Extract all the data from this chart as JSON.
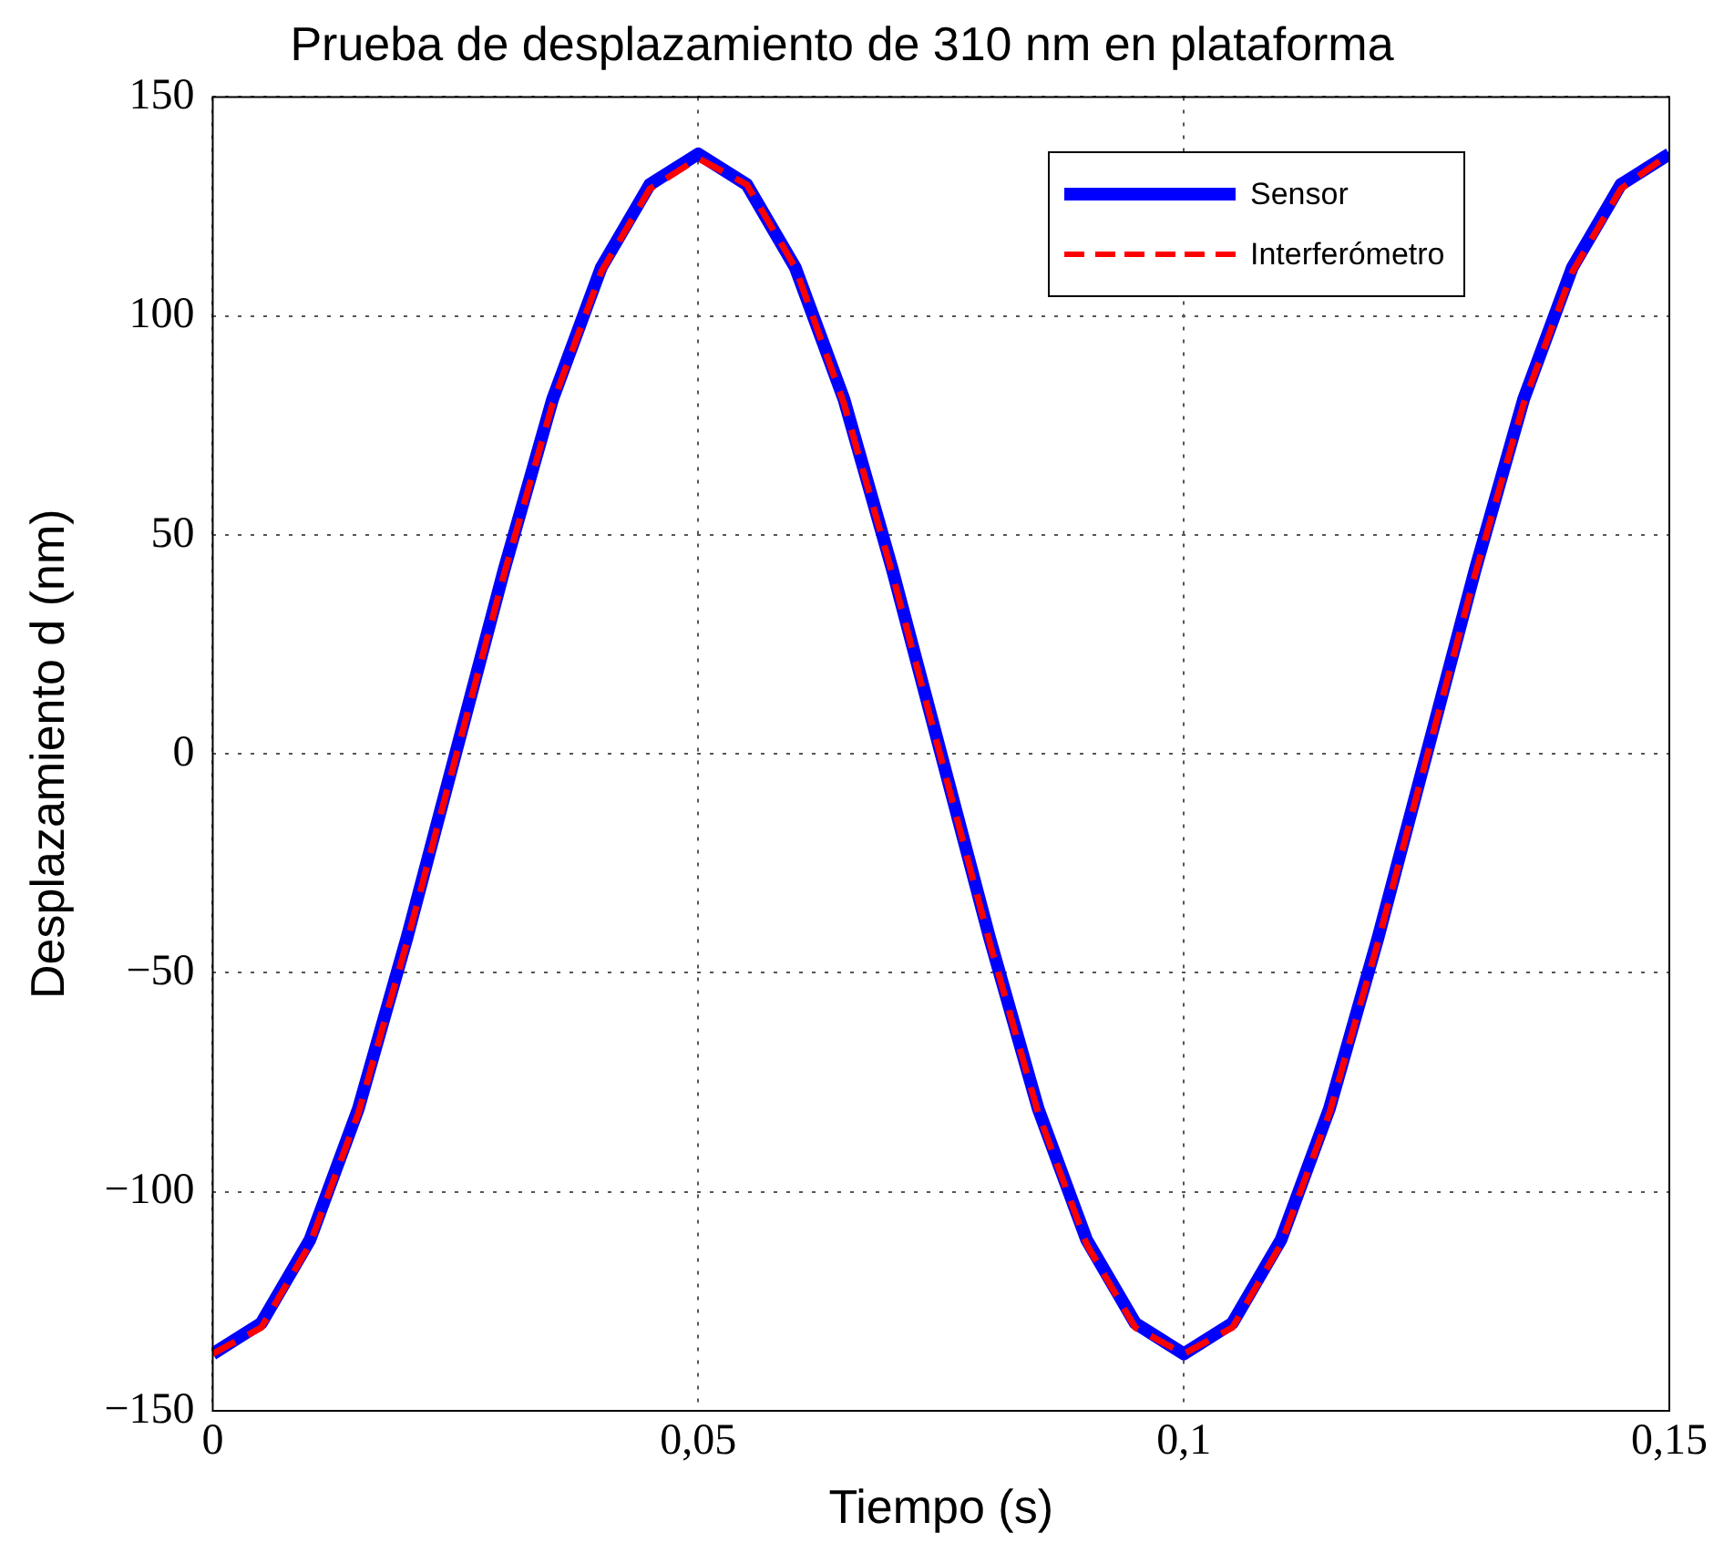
{
  "chart_data": {
    "type": "line",
    "title": "Prueba de desplazamiento de 310 nm en plataforma",
    "xlabel": "Tiempo (s)",
    "ylabel": "Desplazamiento d (nm)",
    "x": [
      0,
      0.005,
      0.01,
      0.015,
      0.02,
      0.025,
      0.03,
      0.035,
      0.04,
      0.045,
      0.05,
      0.055,
      0.06,
      0.065,
      0.07,
      0.075,
      0.08,
      0.085,
      0.09,
      0.095,
      0.1,
      0.105,
      0.11,
      0.115,
      0.12,
      0.125,
      0.13,
      0.135,
      0.14,
      0.145,
      0.15
    ],
    "series": [
      {
        "name": "Sensor",
        "color": "#0000ff",
        "line_style": "solid",
        "values": [
          -137,
          -130,
          -111,
          -81,
          -42,
          0,
          42,
          81,
          111,
          130,
          137,
          130,
          111,
          81,
          42,
          0,
          -42,
          -81,
          -111,
          -130,
          -137,
          -130,
          -111,
          -81,
          -42,
          0,
          42,
          81,
          111,
          130,
          137
        ]
      },
      {
        "name": "Interferómetro",
        "color": "#ff0000",
        "line_style": "dashed",
        "values": [
          -137,
          -131,
          -112,
          -82,
          -43,
          -1,
          41,
          80,
          110,
          129,
          136,
          130,
          111,
          80,
          41,
          -1,
          -43,
          -82,
          -112,
          -131,
          -137,
          -131,
          -112,
          -82,
          -43,
          -1,
          41,
          80,
          110,
          129,
          137
        ]
      }
    ],
    "xlim": [
      0,
      0.15
    ],
    "xticks": [
      0,
      {
        "value": 0.05,
        "label": "0,05"
      },
      {
        "value": 0.1,
        "label": "0,1"
      },
      {
        "value": 0.15,
        "label": "0,15"
      }
    ],
    "ylim": [
      -150,
      150
    ],
    "yticks": [
      {
        "value": -150,
        "label": "−150"
      },
      {
        "value": -100,
        "label": "−100"
      },
      {
        "value": -50,
        "label": "−50"
      },
      0,
      50,
      100,
      150
    ],
    "grid": true,
    "legend": "top right",
    "marker": "none"
  }
}
